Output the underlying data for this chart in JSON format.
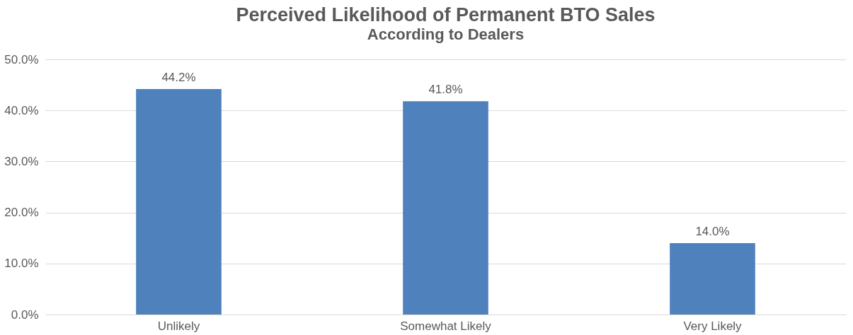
{
  "chart_data": {
    "type": "bar",
    "title": "Perceived Likelihood of Permanent BTO Sales",
    "subtitle": "According to Dealers",
    "categories": [
      "Unlikely",
      "Somewhat Likely",
      "Very Likely"
    ],
    "values": [
      44.2,
      41.8,
      14.0
    ],
    "value_labels": [
      "44.2%",
      "41.8%",
      "14.0%"
    ],
    "color": "#4f81bd",
    "ylim": [
      0,
      50
    ],
    "yticks": [
      {
        "value": 0,
        "label": "0.0%"
      },
      {
        "value": 10,
        "label": "10.0%"
      },
      {
        "value": 20,
        "label": "20.0%"
      },
      {
        "value": 30,
        "label": "30.0%"
      },
      {
        "value": 40,
        "label": "40.0%"
      },
      {
        "value": 50,
        "label": "50.0%"
      }
    ],
    "grid": "y"
  }
}
